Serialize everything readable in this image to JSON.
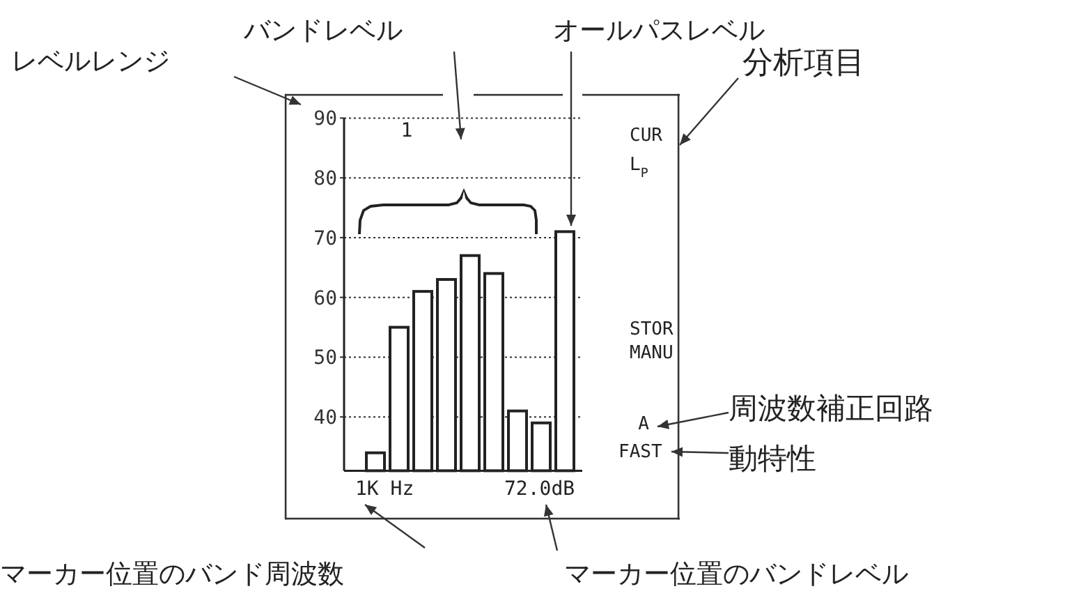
{
  "chart_data": {
    "type": "bar",
    "categories": [
      null,
      null,
      null,
      null,
      null,
      null,
      null,
      null,
      null
    ],
    "values": [
      34,
      55,
      61,
      63,
      67,
      64,
      41,
      39,
      71
    ],
    "color": "#ffffff",
    "ylim": [
      31,
      90
    ],
    "yticks": [
      40,
      50,
      60,
      70,
      80,
      90
    ],
    "grid": "y",
    "annotations": [
      "1",
      "CUR",
      "L$_{P}$",
      "STOR",
      "MANU",
      "A",
      "FAST",
      "1K Hz",
      "72.0dB",
      "レベルレンジ",
      "バンドレベル",
      "オールパスレベル",
      "分析項目",
      "周波数補正回路",
      "動特性",
      "マーカー位置のバンド周波数",
      "マーカー位置のバンドレベル"
    ]
  }
}
